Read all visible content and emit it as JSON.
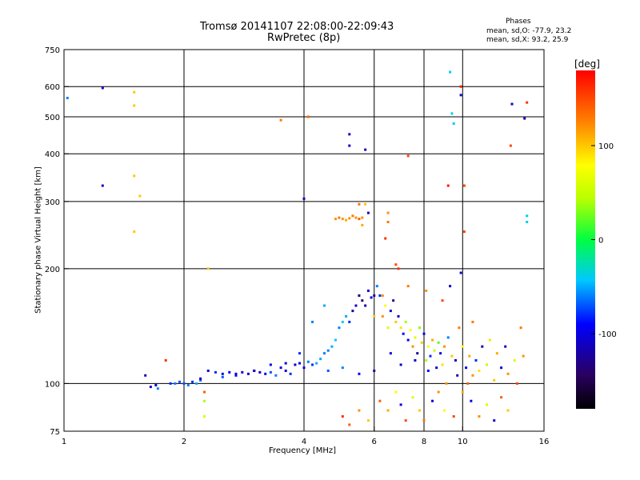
{
  "header": {
    "title_line1": "Tromsø 20141107 22:08:00-22:09:43",
    "title_line2": "RwPretec (8p)"
  },
  "phases": {
    "title": "Phases",
    "o_line": "mean, sd,O: -77.9, 23.2",
    "x_line": "mean, sd,X:  93.2, 25.9"
  },
  "axes": {
    "xlabel": "Frequency [MHz]",
    "ylabel": "Stationary phase Virtual Height [km]"
  },
  "colorbar": {
    "label": "[deg]",
    "ticks": [
      "100",
      "0",
      "-100"
    ],
    "range": [
      -180,
      180
    ]
  },
  "chart_data": {
    "type": "scatter",
    "title": "Tromsø 20141107 22:08:00-22:09:43",
    "subtitle": "RwPretec (8p)",
    "xlabel": "Frequency [MHz]",
    "ylabel": "Stationary phase Virtual Height [km]",
    "x_scale": "log",
    "y_scale": "log",
    "xlim": [
      1,
      16
    ],
    "ylim": [
      75,
      750
    ],
    "x_ticks": [
      1,
      2,
      4,
      6,
      8,
      10,
      16
    ],
    "y_ticks": [
      75,
      100,
      200,
      300,
      400,
      500,
      600,
      750
    ],
    "grid": true,
    "color_by": "phase [deg]",
    "color_range": [
      -180,
      180
    ],
    "points": [
      [
        1.02,
        560,
        -60
      ],
      [
        1.25,
        595,
        -110
      ],
      [
        1.25,
        330,
        -110
      ],
      [
        1.5,
        580,
        100
      ],
      [
        1.5,
        535,
        100
      ],
      [
        1.5,
        350,
        100
      ],
      [
        1.5,
        250,
        100
      ],
      [
        1.55,
        310,
        100
      ],
      [
        1.6,
        105,
        -110
      ],
      [
        1.65,
        98,
        -110
      ],
      [
        1.7,
        99,
        -110
      ],
      [
        1.72,
        97,
        -60
      ],
      [
        1.8,
        115,
        160
      ],
      [
        1.85,
        100,
        -80
      ],
      [
        1.9,
        100,
        -60
      ],
      [
        1.95,
        101,
        -70
      ],
      [
        2.0,
        100,
        -70
      ],
      [
        2.05,
        99,
        -60
      ],
      [
        2.1,
        101,
        -80
      ],
      [
        2.15,
        100,
        -50
      ],
      [
        2.2,
        102,
        -70
      ],
      [
        2.25,
        95,
        140
      ],
      [
        2.25,
        90,
        40
      ],
      [
        2.3,
        200,
        100
      ],
      [
        2.3,
        108,
        -110
      ],
      [
        2.4,
        107,
        -80
      ],
      [
        2.5,
        106,
        -100
      ],
      [
        2.6,
        107,
        -90
      ],
      [
        2.7,
        106,
        -110
      ],
      [
        2.8,
        107,
        -100
      ],
      [
        2.9,
        106,
        -110
      ],
      [
        3.0,
        108,
        -100
      ],
      [
        3.1,
        107,
        -110
      ],
      [
        3.2,
        106,
        -90
      ],
      [
        3.3,
        107,
        -70
      ],
      [
        3.4,
        105,
        -60
      ],
      [
        3.5,
        110,
        -100
      ],
      [
        3.6,
        108,
        -110
      ],
      [
        3.7,
        106,
        -80
      ],
      [
        3.8,
        112,
        -110
      ],
      [
        3.9,
        113,
        -100
      ],
      [
        4.0,
        305,
        -110
      ],
      [
        4.0,
        110,
        -100
      ],
      [
        4.1,
        114,
        -60
      ],
      [
        4.2,
        112,
        -80
      ],
      [
        4.3,
        113,
        -50
      ],
      [
        4.4,
        116,
        -50
      ],
      [
        4.5,
        120,
        -60
      ],
      [
        4.6,
        122,
        -60
      ],
      [
        4.7,
        125,
        -50
      ],
      [
        4.8,
        130,
        -40
      ],
      [
        4.9,
        140,
        -60
      ],
      [
        5.0,
        145,
        -40
      ],
      [
        5.1,
        150,
        -50
      ],
      [
        5.2,
        145,
        -80
      ],
      [
        5.3,
        155,
        -120
      ],
      [
        5.4,
        160,
        -110
      ],
      [
        5.5,
        170,
        -130
      ],
      [
        5.6,
        165,
        -140
      ],
      [
        5.7,
        160,
        -120
      ],
      [
        5.8,
        175,
        -110
      ],
      [
        5.9,
        168,
        -100
      ],
      [
        6.0,
        170,
        -130
      ],
      [
        4.8,
        270,
        120
      ],
      [
        4.9,
        272,
        130
      ],
      [
        5.0,
        270,
        120
      ],
      [
        5.1,
        268,
        110
      ],
      [
        5.2,
        271,
        120
      ],
      [
        5.3,
        275,
        130
      ],
      [
        5.4,
        272,
        120
      ],
      [
        5.5,
        270,
        140
      ],
      [
        5.6,
        272,
        120
      ],
      [
        5.5,
        295,
        130
      ],
      [
        5.7,
        295,
        100
      ],
      [
        5.8,
        280,
        -110
      ],
      [
        5.2,
        450,
        -110
      ],
      [
        5.2,
        420,
        -110
      ],
      [
        5.7,
        410,
        -110
      ],
      [
        6.1,
        180,
        -60
      ],
      [
        6.2,
        170,
        -80
      ],
      [
        6.3,
        150,
        120
      ],
      [
        6.4,
        160,
        80
      ],
      [
        6.5,
        140,
        60
      ],
      [
        6.6,
        155,
        -100
      ],
      [
        6.7,
        165,
        -120
      ],
      [
        6.8,
        145,
        100
      ],
      [
        6.9,
        150,
        -110
      ],
      [
        7.0,
        140,
        90
      ],
      [
        7.1,
        135,
        -90
      ],
      [
        7.2,
        145,
        40
      ],
      [
        7.3,
        130,
        -100
      ],
      [
        7.4,
        138,
        80
      ],
      [
        7.5,
        125,
        120
      ],
      [
        7.6,
        132,
        60
      ],
      [
        7.7,
        120,
        -120
      ],
      [
        7.8,
        140,
        30
      ],
      [
        7.9,
        128,
        100
      ],
      [
        8.0,
        135,
        -100
      ],
      [
        8.1,
        115,
        40
      ],
      [
        8.2,
        125,
        80
      ],
      [
        8.3,
        118,
        -80
      ],
      [
        8.4,
        130,
        110
      ],
      [
        8.5,
        122,
        50
      ],
      [
        8.6,
        110,
        -110
      ],
      [
        8.7,
        128,
        20
      ],
      [
        8.8,
        120,
        -100
      ],
      [
        8.9,
        112,
        90
      ],
      [
        9.0,
        125,
        120
      ],
      [
        9.2,
        132,
        -60
      ],
      [
        9.4,
        118,
        100
      ],
      [
        9.6,
        115,
        -110
      ],
      [
        9.8,
        140,
        130
      ],
      [
        10.0,
        125,
        80
      ],
      [
        10.2,
        110,
        -100
      ],
      [
        10.4,
        118,
        110
      ],
      [
        10.6,
        105,
        120
      ],
      [
        10.8,
        115,
        -80
      ],
      [
        11.0,
        108,
        90
      ],
      [
        11.5,
        112,
        50
      ],
      [
        12.0,
        102,
        100
      ],
      [
        12.5,
        110,
        -100
      ],
      [
        13.0,
        106,
        120
      ],
      [
        13.5,
        115,
        60
      ],
      [
        14.0,
        140,
        130
      ],
      [
        14.5,
        275,
        -40
      ],
      [
        14.5,
        265,
        -40
      ],
      [
        14.5,
        545,
        160
      ],
      [
        14.3,
        495,
        -110
      ],
      [
        13.3,
        540,
        -110
      ],
      [
        13.2,
        420,
        150
      ],
      [
        9.3,
        655,
        -40
      ],
      [
        9.4,
        510,
        -40
      ],
      [
        9.5,
        480,
        -40
      ],
      [
        9.9,
        600,
        170
      ],
      [
        9.9,
        570,
        -110
      ],
      [
        10.1,
        330,
        150
      ],
      [
        9.2,
        330,
        170
      ],
      [
        10.1,
        250,
        150
      ],
      [
        9.9,
        195,
        -110
      ],
      [
        7.3,
        395,
        150
      ],
      [
        6.5,
        280,
        120
      ],
      [
        6.5,
        265,
        130
      ],
      [
        6.4,
        240,
        160
      ],
      [
        6.3,
        170,
        120
      ],
      [
        6.0,
        150,
        100
      ],
      [
        6.2,
        90,
        140
      ],
      [
        6.5,
        85,
        110
      ],
      [
        6.8,
        95,
        80
      ],
      [
        7.0,
        88,
        -100
      ],
      [
        7.2,
        80,
        150
      ],
      [
        7.5,
        92,
        60
      ],
      [
        7.8,
        85,
        100
      ],
      [
        8.0,
        80,
        130
      ],
      [
        8.4,
        90,
        -110
      ],
      [
        8.7,
        95,
        120
      ],
      [
        9.0,
        85,
        80
      ],
      [
        9.5,
        82,
        150
      ],
      [
        10.0,
        95,
        110
      ],
      [
        10.5,
        90,
        -100
      ],
      [
        11.0,
        82,
        120
      ],
      [
        11.5,
        88,
        60
      ],
      [
        12.0,
        80,
        -110
      ],
      [
        12.5,
        92,
        140
      ],
      [
        13.0,
        85,
        100
      ],
      [
        5.0,
        82,
        160
      ],
      [
        5.2,
        78,
        140
      ],
      [
        5.5,
        85,
        120
      ],
      [
        5.8,
        80,
        100
      ],
      [
        4.5,
        160,
        -50
      ],
      [
        4.2,
        145,
        -60
      ],
      [
        3.9,
        120,
        -80
      ],
      [
        3.6,
        113,
        -110
      ],
      [
        3.3,
        112,
        -100
      ],
      [
        3.0,
        108,
        -110
      ],
      [
        2.7,
        105,
        -90
      ],
      [
        2.5,
        104,
        -70
      ],
      [
        2.2,
        103,
        -110
      ],
      [
        7.0,
        112,
        -110
      ],
      [
        6.0,
        108,
        -120
      ],
      [
        5.5,
        106,
        -90
      ],
      [
        5.0,
        110,
        -60
      ],
      [
        4.6,
        108,
        -70
      ],
      [
        6.6,
        120,
        -100
      ],
      [
        7.6,
        115,
        -110
      ],
      [
        8.2,
        108,
        -90
      ],
      [
        9.1,
        100,
        120
      ],
      [
        9.7,
        105,
        -110
      ],
      [
        10.3,
        100,
        140
      ],
      [
        11.2,
        125,
        -120
      ],
      [
        12.2,
        120,
        110
      ],
      [
        13.7,
        100,
        150
      ],
      [
        3.5,
        490,
        130
      ],
      [
        2.25,
        82,
        60
      ],
      [
        6.9,
        200,
        160
      ],
      [
        7.3,
        180,
        130
      ],
      [
        8.1,
        175,
        120
      ],
      [
        8.9,
        165,
        150
      ],
      [
        9.3,
        180,
        -110
      ],
      [
        10.6,
        145,
        130
      ],
      [
        11.7,
        130,
        90
      ],
      [
        12.8,
        125,
        -110
      ],
      [
        14.2,
        118,
        120
      ],
      [
        4.1,
        500,
        140
      ],
      [
        5.6,
        260,
        110
      ],
      [
        6.8,
        205,
        150
      ]
    ]
  }
}
